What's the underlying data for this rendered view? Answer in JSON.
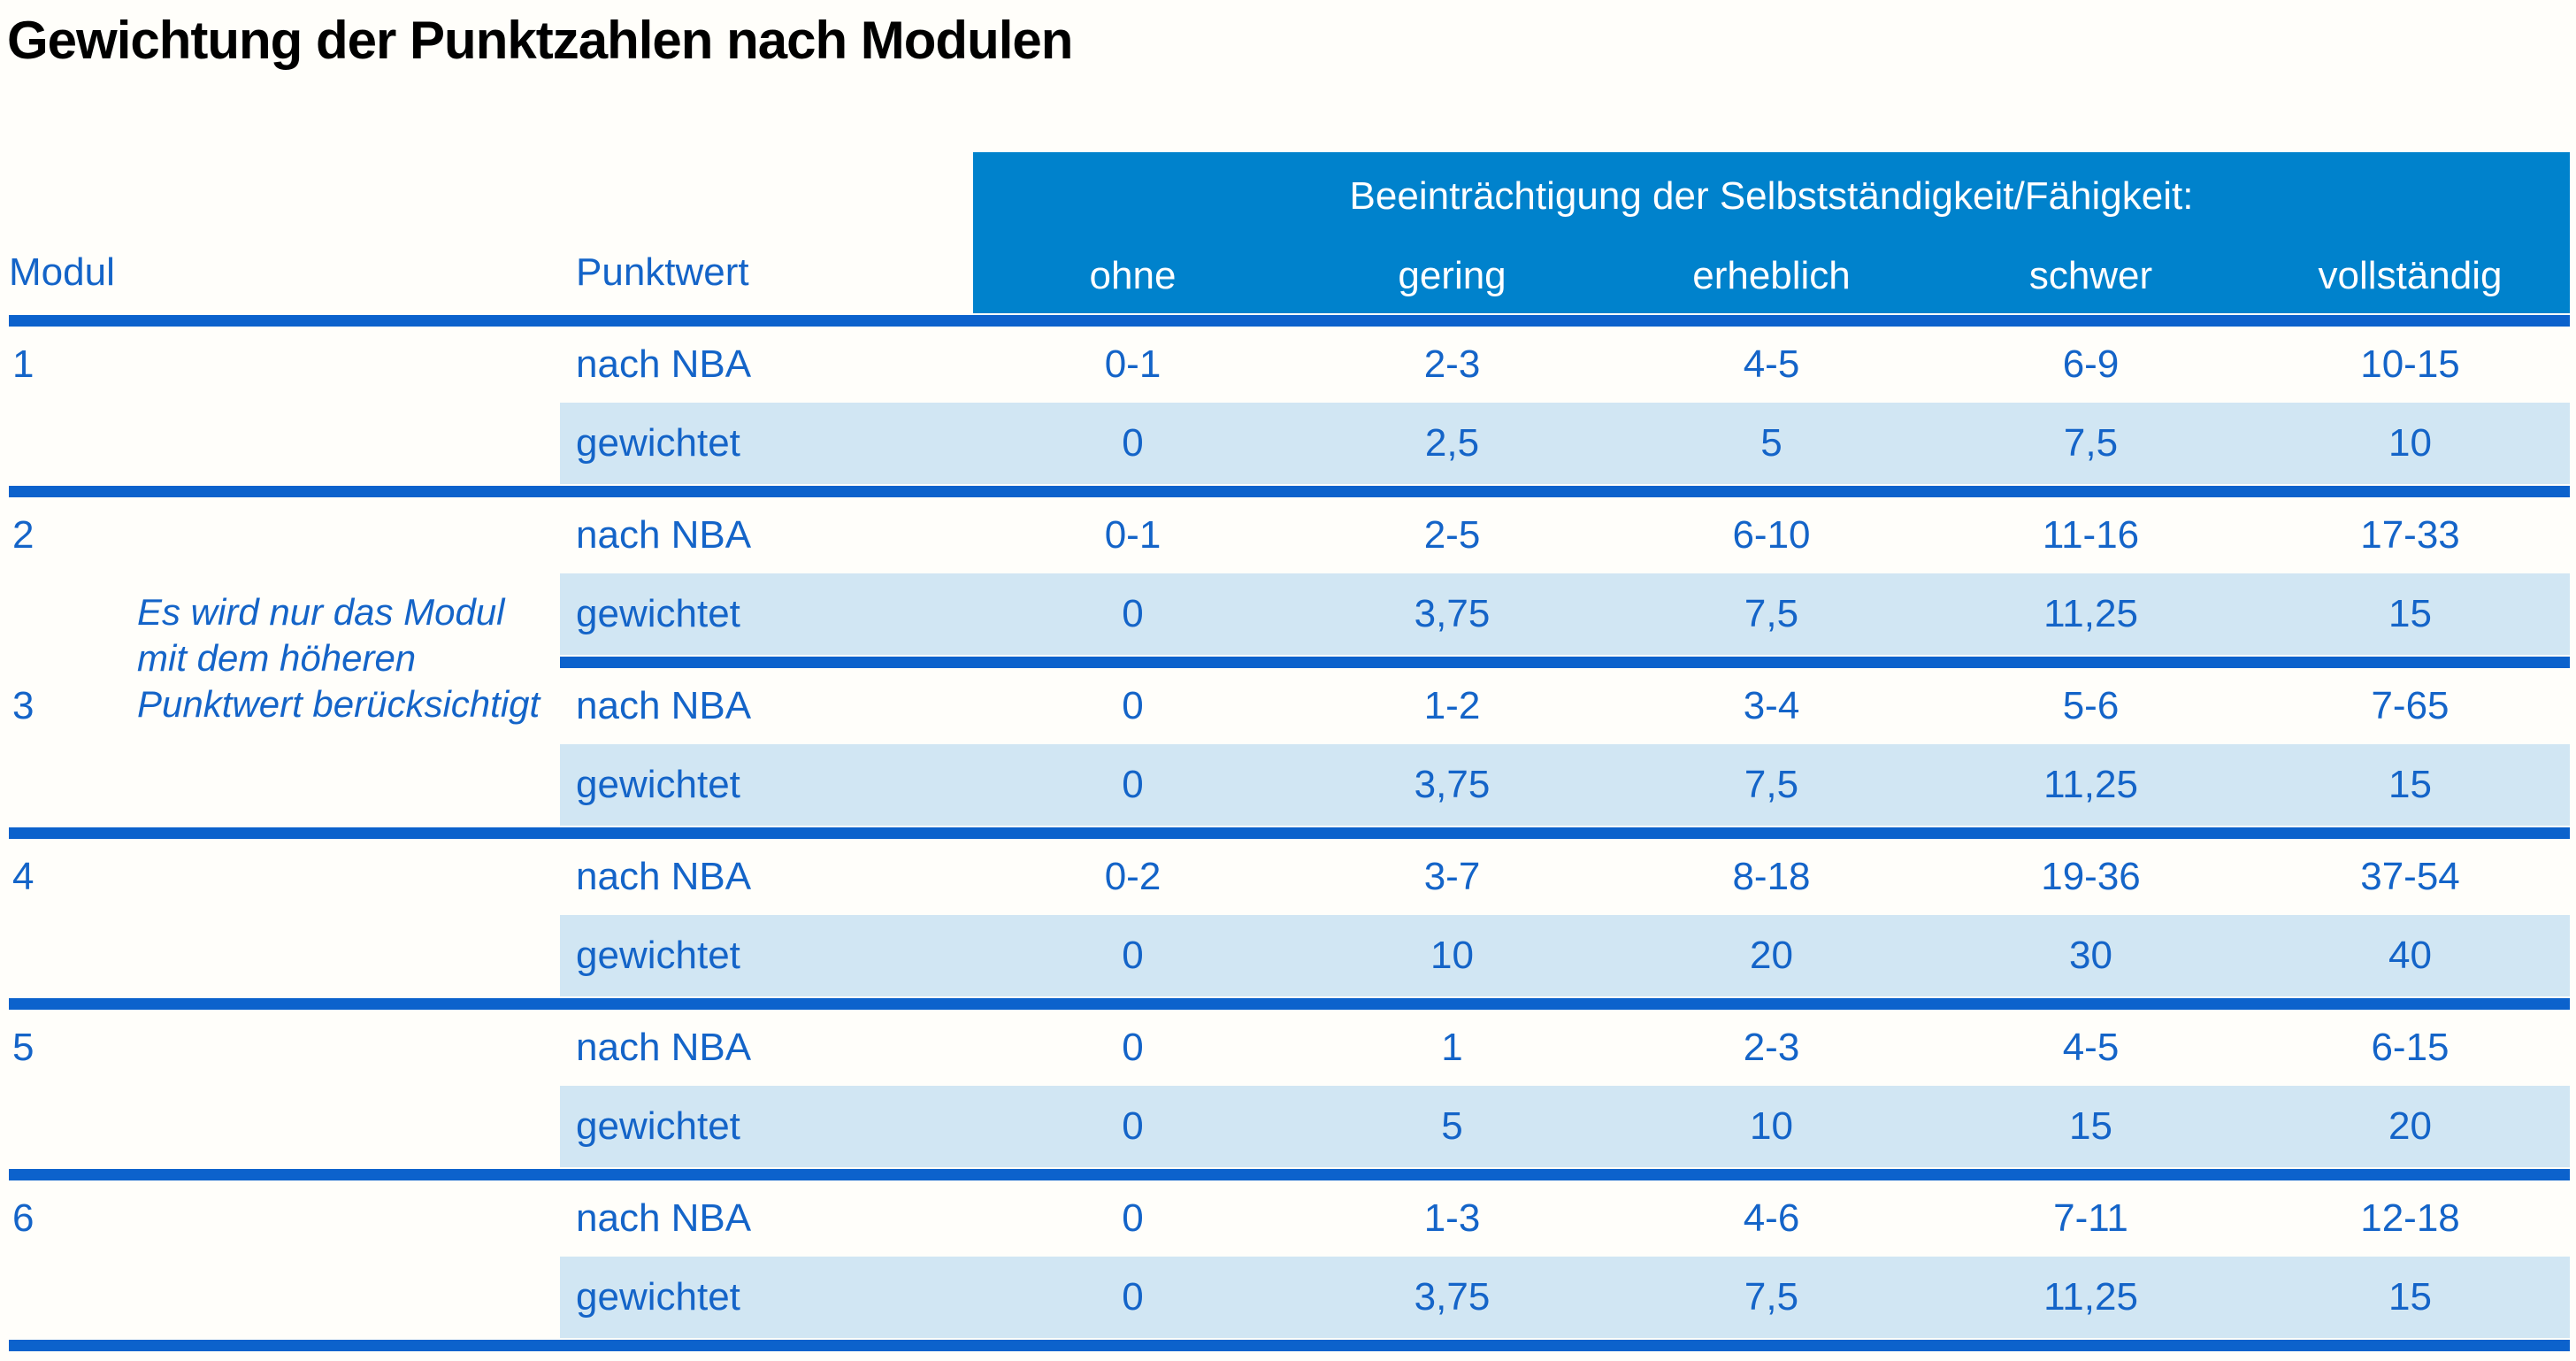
{
  "title": "Gewichtung der Punktzahlen nach Modulen",
  "table": {
    "col_headers": {
      "modul": "Modul",
      "punktwert": "Punktwert"
    },
    "group_header": "Beeinträchtigung der Selbstständigkeit/Fähigkeit:",
    "severity_levels": [
      "ohne",
      "gering",
      "erheblich",
      "schwer",
      "vollständig"
    ],
    "row_labels": {
      "nba": "nach NBA",
      "weighted": "gewichtet"
    },
    "note": {
      "lines": [
        "Es wird nur das Modul",
        "mit dem höheren",
        "Punktwert berücksichtigt"
      ]
    },
    "modules": [
      {
        "id": "1",
        "nba": [
          "0-1",
          "2-3",
          "4-5",
          "6-9",
          "10-15"
        ],
        "weighted": [
          "0",
          "2,5",
          "5",
          "7,5",
          "10"
        ],
        "separator_full": true
      },
      {
        "id": "2",
        "nba": [
          "0-1",
          "2-5",
          "6-10",
          "11-16",
          "17-33"
        ],
        "weighted": [
          "0",
          "3,75",
          "7,5",
          "11,25",
          "15"
        ],
        "separator_full": false
      },
      {
        "id": "3",
        "nba": [
          "0",
          "1-2",
          "3-4",
          "5-6",
          "7-65"
        ],
        "weighted": [
          "0",
          "3,75",
          "7,5",
          "11,25",
          "15"
        ],
        "separator_full": true
      },
      {
        "id": "4",
        "nba": [
          "0-2",
          "3-7",
          "8-18",
          "19-36",
          "37-54"
        ],
        "weighted": [
          "0",
          "10",
          "20",
          "30",
          "40"
        ],
        "separator_full": true
      },
      {
        "id": "5",
        "nba": [
          "0",
          "1",
          "2-3",
          "4-5",
          "6-15"
        ],
        "weighted": [
          "0",
          "5",
          "10",
          "15",
          "20"
        ],
        "separator_full": true
      },
      {
        "id": "6",
        "nba": [
          "0",
          "1-3",
          "4-6",
          "7-11",
          "12-18"
        ],
        "weighted": [
          "0",
          "3,75",
          "7,5",
          "11,25",
          "15"
        ],
        "separator_full": true
      }
    ]
  },
  "colors": {
    "header_bg": "#0082CC",
    "rule": "#0C62CC",
    "text_blue": "#1464C8",
    "band_bg": "#D1E6F3",
    "title_color": "#000000",
    "page_bg": "#FFFEFA"
  }
}
